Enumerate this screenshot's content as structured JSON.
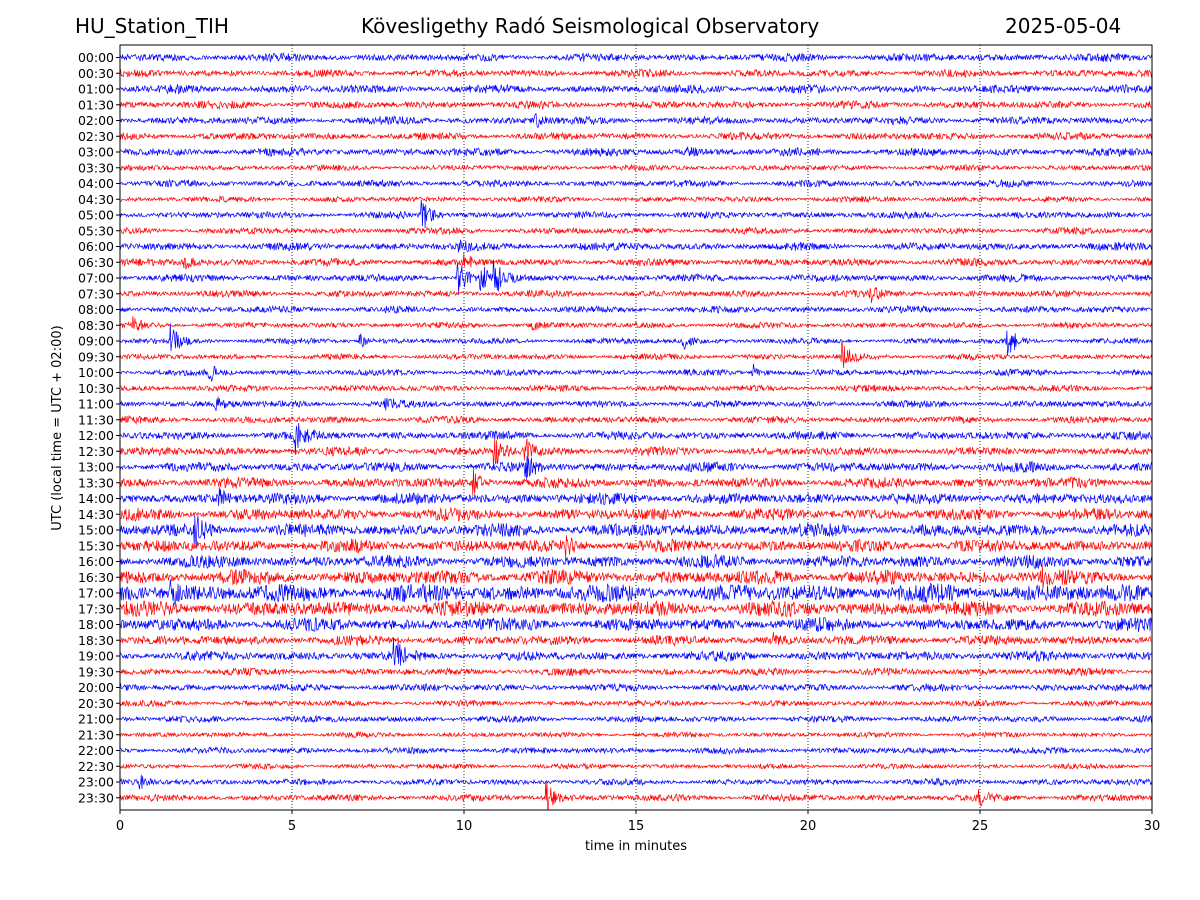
{
  "header": {
    "station": "HU_Station_TIH",
    "observatory": "Kövesligethy Radó Seismological Observatory",
    "date": "2025-05-04"
  },
  "chart_data": {
    "type": "line",
    "subtype": "helicorder",
    "xlabel": "time in minutes",
    "ylabel": "UTC (local time = UTC + 02:00)",
    "xlim": [
      0,
      30
    ],
    "x_ticks": [
      "0",
      "5",
      "10",
      "15",
      "20",
      "25",
      "30"
    ],
    "grid": "vertical dotted lines at each x tick",
    "colors": {
      "even_rows": "#0000ff",
      "odd_rows": "#ff0000"
    },
    "rows": [
      {
        "label": "00:00",
        "amplitude": 0.28,
        "events": []
      },
      {
        "label": "00:30",
        "amplitude": 0.26,
        "events": []
      },
      {
        "label": "01:00",
        "amplitude": 0.3,
        "events": []
      },
      {
        "label": "01:30",
        "amplitude": 0.27,
        "events": []
      },
      {
        "label": "02:00",
        "amplitude": 0.27,
        "events": [
          {
            "t": 12.1,
            "a": 0.45
          }
        ]
      },
      {
        "label": "02:30",
        "amplitude": 0.26,
        "events": []
      },
      {
        "label": "03:00",
        "amplitude": 0.28,
        "events": [
          {
            "t": 16.5,
            "a": 0.4
          }
        ]
      },
      {
        "label": "03:30",
        "amplitude": 0.2,
        "events": []
      },
      {
        "label": "04:00",
        "amplitude": 0.24,
        "events": []
      },
      {
        "label": "04:30",
        "amplitude": 0.2,
        "events": []
      },
      {
        "label": "05:00",
        "amplitude": 0.24,
        "events": [
          {
            "t": 8.8,
            "a": 1.3
          }
        ]
      },
      {
        "label": "05:30",
        "amplitude": 0.22,
        "events": []
      },
      {
        "label": "06:00",
        "amplitude": 0.28,
        "events": [
          {
            "t": 9.8,
            "a": 0.6
          }
        ]
      },
      {
        "label": "06:30",
        "amplitude": 0.26,
        "events": [
          {
            "t": 1.9,
            "a": 0.5
          },
          {
            "t": 10.0,
            "a": 0.7
          }
        ]
      },
      {
        "label": "07:00",
        "amplitude": 0.26,
        "events": [
          {
            "t": 9.8,
            "a": 1.8
          },
          {
            "t": 10.5,
            "a": 1.0
          },
          {
            "t": 10.9,
            "a": 1.2
          }
        ]
      },
      {
        "label": "07:30",
        "amplitude": 0.24,
        "events": [
          {
            "t": 21.8,
            "a": 0.6
          }
        ]
      },
      {
        "label": "08:00",
        "amplitude": 0.24,
        "events": []
      },
      {
        "label": "08:30",
        "amplitude": 0.2,
        "events": [
          {
            "t": 0.4,
            "a": 0.6
          },
          {
            "t": 12.0,
            "a": 0.4
          }
        ]
      },
      {
        "label": "09:00",
        "amplitude": 0.2,
        "events": [
          {
            "t": 1.5,
            "a": 1.4
          },
          {
            "t": 7.0,
            "a": 0.5
          },
          {
            "t": 16.4,
            "a": 0.6
          },
          {
            "t": 25.8,
            "a": 1.6
          }
        ]
      },
      {
        "label": "09:30",
        "amplitude": 0.2,
        "events": [
          {
            "t": 21.0,
            "a": 1.4
          }
        ]
      },
      {
        "label": "10:00",
        "amplitude": 0.22,
        "events": [
          {
            "t": 2.6,
            "a": 0.7
          },
          {
            "t": 18.4,
            "a": 0.7
          }
        ]
      },
      {
        "label": "10:30",
        "amplitude": 0.22,
        "events": []
      },
      {
        "label": "11:00",
        "amplitude": 0.24,
        "events": [
          {
            "t": 2.8,
            "a": 0.6
          },
          {
            "t": 7.7,
            "a": 0.5
          }
        ]
      },
      {
        "label": "11:30",
        "amplitude": 0.24,
        "events": []
      },
      {
        "label": "12:00",
        "amplitude": 0.3,
        "events": [
          {
            "t": 5.1,
            "a": 1.4
          }
        ]
      },
      {
        "label": "12:30",
        "amplitude": 0.3,
        "events": [
          {
            "t": 10.9,
            "a": 1.3
          },
          {
            "t": 11.8,
            "a": 0.9
          }
        ]
      },
      {
        "label": "13:00",
        "amplitude": 0.34,
        "events": [
          {
            "t": 11.8,
            "a": 1.1
          }
        ]
      },
      {
        "label": "13:30",
        "amplitude": 0.36,
        "events": [
          {
            "t": 10.3,
            "a": 1.0
          }
        ]
      },
      {
        "label": "14:00",
        "amplitude": 0.4,
        "events": [
          {
            "t": 2.9,
            "a": 0.7
          }
        ]
      },
      {
        "label": "14:30",
        "amplitude": 0.42,
        "events": []
      },
      {
        "label": "15:00",
        "amplitude": 0.46,
        "events": [
          {
            "t": 2.2,
            "a": 1.0
          }
        ]
      },
      {
        "label": "15:30",
        "amplitude": 0.44,
        "events": [
          {
            "t": 13.0,
            "a": 1.0
          }
        ]
      },
      {
        "label": "16:00",
        "amplitude": 0.44,
        "events": []
      },
      {
        "label": "16:30",
        "amplitude": 0.5,
        "events": [
          {
            "t": 26.8,
            "a": 0.8
          }
        ]
      },
      {
        "label": "17:00",
        "amplitude": 0.64,
        "events": [
          {
            "t": 1.5,
            "a": 0.9
          }
        ]
      },
      {
        "label": "17:30",
        "amplitude": 0.54,
        "events": []
      },
      {
        "label": "18:00",
        "amplitude": 0.46,
        "events": []
      },
      {
        "label": "18:30",
        "amplitude": 0.34,
        "events": [
          {
            "t": 19.0,
            "a": 0.6
          }
        ]
      },
      {
        "label": "19:00",
        "amplitude": 0.34,
        "events": [
          {
            "t": 8.0,
            "a": 1.3
          }
        ]
      },
      {
        "label": "19:30",
        "amplitude": 0.26,
        "events": []
      },
      {
        "label": "20:00",
        "amplitude": 0.26,
        "events": []
      },
      {
        "label": "20:30",
        "amplitude": 0.2,
        "events": []
      },
      {
        "label": "21:00",
        "amplitude": 0.22,
        "events": []
      },
      {
        "label": "21:30",
        "amplitude": 0.18,
        "events": []
      },
      {
        "label": "22:00",
        "amplitude": 0.22,
        "events": []
      },
      {
        "label": "22:30",
        "amplitude": 0.18,
        "events": []
      },
      {
        "label": "23:00",
        "amplitude": 0.22,
        "events": [
          {
            "t": 0.6,
            "a": 0.5
          }
        ]
      },
      {
        "label": "23:30",
        "amplitude": 0.24,
        "events": [
          {
            "t": 12.4,
            "a": 1.3
          },
          {
            "t": 25.0,
            "a": 0.5
          }
        ]
      }
    ]
  }
}
